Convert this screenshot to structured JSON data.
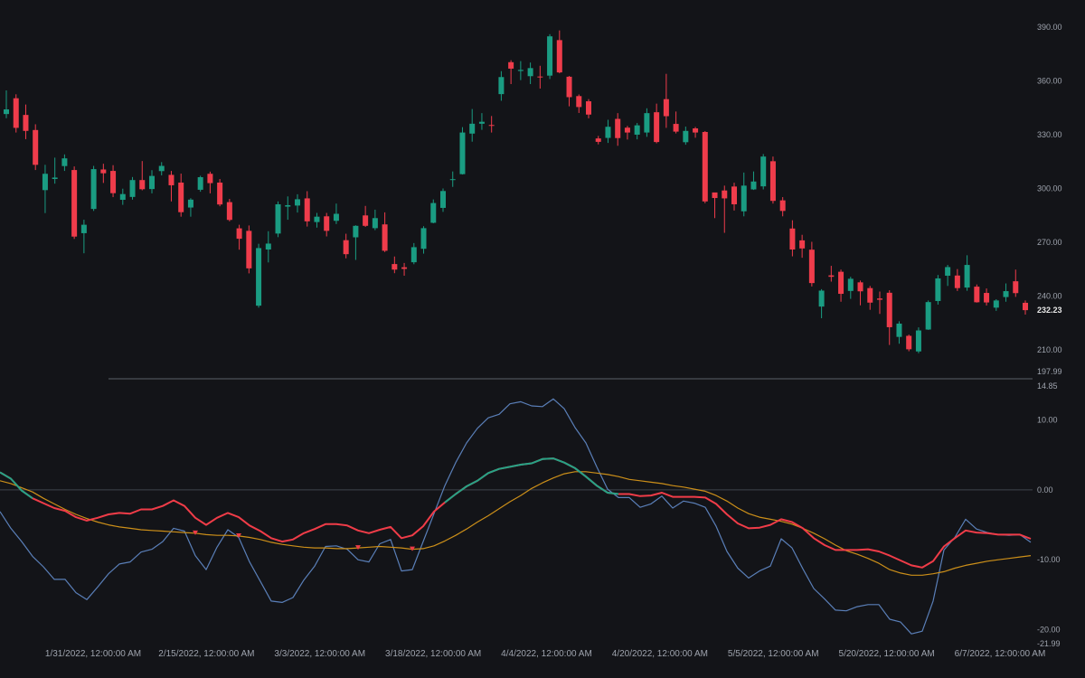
{
  "chart_data": [
    {
      "type": "candlestick",
      "ylim": [
        197.99,
        398
      ],
      "y_ticks": [
        "390.00",
        "360.00",
        "330.00",
        "300.00",
        "270.00",
        "240.00",
        "210.00"
      ],
      "y_min_label": "197.99",
      "last_price": "232.23",
      "last_price_value": 232.23,
      "up_color": "#1a9c82",
      "down_color": "#ef3c4b",
      "candles": [
        {
          "o": 341.5,
          "h": 354.7,
          "l": 339.2,
          "c": 344.1
        },
        {
          "o": 350.3,
          "h": 352.5,
          "l": 331.2,
          "c": 333.8
        },
        {
          "o": 341.0,
          "h": 346.8,
          "l": 327.5,
          "c": 332.1
        },
        {
          "o": 332.6,
          "h": 335.8,
          "l": 310.3,
          "c": 313.2
        },
        {
          "o": 299.1,
          "h": 313.2,
          "l": 286.3,
          "c": 308.2
        },
        {
          "o": 305.3,
          "h": 317.2,
          "l": 302.7,
          "c": 306.1
        },
        {
          "o": 312.5,
          "h": 319.0,
          "l": 309.8,
          "c": 316.8
        },
        {
          "o": 310.3,
          "h": 312.3,
          "l": 271.9,
          "c": 273.2
        },
        {
          "o": 275.1,
          "h": 282.6,
          "l": 263.9,
          "c": 279.8
        },
        {
          "o": 288.6,
          "h": 312.6,
          "l": 287.5,
          "c": 310.8
        },
        {
          "o": 310.6,
          "h": 313.8,
          "l": 303.1,
          "c": 308.5
        },
        {
          "o": 309.8,
          "h": 313.0,
          "l": 295.2,
          "c": 297.4
        },
        {
          "o": 293.7,
          "h": 299.9,
          "l": 290.9,
          "c": 296.9
        },
        {
          "o": 295.3,
          "h": 306.4,
          "l": 293.8,
          "c": 304.7
        },
        {
          "o": 304.7,
          "h": 315.3,
          "l": 299.0,
          "c": 299.6
        },
        {
          "o": 299.7,
          "h": 310.2,
          "l": 297.3,
          "c": 307.0
        },
        {
          "o": 309.7,
          "h": 314.7,
          "l": 307.3,
          "c": 312.6
        },
        {
          "o": 307.6,
          "h": 309.8,
          "l": 292.8,
          "c": 301.8
        },
        {
          "o": 303.3,
          "h": 308.3,
          "l": 284.3,
          "c": 286.8
        },
        {
          "o": 289.4,
          "h": 294.6,
          "l": 284.3,
          "c": 293.8
        },
        {
          "o": 299.3,
          "h": 307.1,
          "l": 298.2,
          "c": 306.3
        },
        {
          "o": 308.2,
          "h": 309.4,
          "l": 297.3,
          "c": 303.0
        },
        {
          "o": 303.3,
          "h": 305.3,
          "l": 290.1,
          "c": 291.1
        },
        {
          "o": 292.4,
          "h": 294.2,
          "l": 281.7,
          "c": 282.5
        },
        {
          "o": 277.8,
          "h": 279.8,
          "l": 265.9,
          "c": 272.0
        },
        {
          "o": 276.4,
          "h": 279.4,
          "l": 252.7,
          "c": 255.5
        },
        {
          "o": 234.7,
          "h": 269.2,
          "l": 233.6,
          "c": 266.8
        },
        {
          "o": 266.0,
          "h": 276.2,
          "l": 258.8,
          "c": 269.3
        },
        {
          "o": 274.9,
          "h": 292.8,
          "l": 272.9,
          "c": 291.2
        },
        {
          "o": 289.9,
          "h": 295.6,
          "l": 282.6,
          "c": 290.7
        },
        {
          "o": 290.5,
          "h": 296.8,
          "l": 286.6,
          "c": 294.0
        },
        {
          "o": 294.5,
          "h": 298.5,
          "l": 278.8,
          "c": 281.7
        },
        {
          "o": 281.3,
          "h": 286.4,
          "l": 278.2,
          "c": 284.3
        },
        {
          "o": 284.5,
          "h": 286.4,
          "l": 273.3,
          "c": 276.4
        },
        {
          "o": 282.0,
          "h": 291.6,
          "l": 280.2,
          "c": 285.9
        },
        {
          "o": 271.2,
          "h": 274.8,
          "l": 261.1,
          "c": 263.4
        },
        {
          "o": 272.8,
          "h": 279.5,
          "l": 260.2,
          "c": 279.2
        },
        {
          "o": 285.0,
          "h": 290.3,
          "l": 278.6,
          "c": 279.2
        },
        {
          "o": 277.9,
          "h": 288.2,
          "l": 276.8,
          "c": 283.5
        },
        {
          "o": 280.0,
          "h": 286.7,
          "l": 264.6,
          "c": 265.3
        },
        {
          "o": 257.9,
          "h": 262.1,
          "l": 252.8,
          "c": 254.8
        },
        {
          "o": 256.1,
          "h": 258.5,
          "l": 251.4,
          "c": 255.2
        },
        {
          "o": 258.9,
          "h": 269.6,
          "l": 257.8,
          "c": 267.3
        },
        {
          "o": 266.4,
          "h": 279.0,
          "l": 263.7,
          "c": 277.9
        },
        {
          "o": 280.9,
          "h": 293.9,
          "l": 280.6,
          "c": 291.9
        },
        {
          "o": 289.2,
          "h": 300.0,
          "l": 287.0,
          "c": 298.6
        },
        {
          "o": 305.1,
          "h": 309.5,
          "l": 300.9,
          "c": 305.2
        },
        {
          "o": 308.0,
          "h": 334.2,
          "l": 307.8,
          "c": 331.2
        },
        {
          "o": 330.6,
          "h": 344.3,
          "l": 326.1,
          "c": 336.1
        },
        {
          "o": 336.1,
          "h": 342.0,
          "l": 332.7,
          "c": 337.2
        },
        {
          "o": 335.4,
          "h": 340.4,
          "l": 331.2,
          "c": 335.0
        },
        {
          "o": 352.6,
          "h": 365.4,
          "l": 348.9,
          "c": 362.1
        },
        {
          "o": 370.4,
          "h": 371.5,
          "l": 358.2,
          "c": 366.8
        },
        {
          "o": 365.5,
          "h": 371.0,
          "l": 360.4,
          "c": 366.1
        },
        {
          "o": 362.6,
          "h": 370.2,
          "l": 358.2,
          "c": 367.1
        },
        {
          "o": 362.4,
          "h": 368.4,
          "l": 355.7,
          "c": 362.2
        },
        {
          "o": 362.9,
          "h": 386.0,
          "l": 361.0,
          "c": 384.8
        },
        {
          "o": 382.7,
          "h": 388.1,
          "l": 364.2,
          "c": 364.7
        },
        {
          "o": 362.3,
          "h": 362.7,
          "l": 345.8,
          "c": 350.9
        },
        {
          "o": 351.5,
          "h": 352.4,
          "l": 342.1,
          "c": 345.4
        },
        {
          "o": 348.6,
          "h": 349.8,
          "l": 339.1,
          "c": 341.2
        },
        {
          "o": 327.9,
          "h": 329.3,
          "l": 324.6,
          "c": 326.0
        },
        {
          "o": 328.2,
          "h": 338.3,
          "l": 325.4,
          "c": 334.4
        },
        {
          "o": 338.8,
          "h": 342.0,
          "l": 323.8,
          "c": 328.1
        },
        {
          "o": 333.9,
          "h": 334.9,
          "l": 327.3,
          "c": 331.2
        },
        {
          "o": 330.0,
          "h": 336.5,
          "l": 327.4,
          "c": 335.2
        },
        {
          "o": 331.2,
          "h": 344.7,
          "l": 328.8,
          "c": 342.0
        },
        {
          "o": 342.5,
          "h": 347.3,
          "l": 325.2,
          "c": 325.9
        },
        {
          "o": 349.8,
          "h": 363.9,
          "l": 333.8,
          "c": 340.3
        },
        {
          "o": 336.0,
          "h": 342.9,
          "l": 330.7,
          "c": 331.7
        },
        {
          "o": 325.8,
          "h": 334.5,
          "l": 324.4,
          "c": 332.1
        },
        {
          "o": 333.5,
          "h": 334.3,
          "l": 328.3,
          "c": 331.2
        },
        {
          "o": 331.5,
          "h": 332.0,
          "l": 291.8,
          "c": 292.8
        },
        {
          "o": 297.8,
          "h": 297.6,
          "l": 283.5,
          "c": 294.7
        },
        {
          "o": 298.9,
          "h": 301.6,
          "l": 275.3,
          "c": 294.5
        },
        {
          "o": 301.1,
          "h": 303.2,
          "l": 287.7,
          "c": 291.2
        },
        {
          "o": 287.3,
          "h": 308.9,
          "l": 284.5,
          "c": 301.6
        },
        {
          "o": 299.5,
          "h": 309.5,
          "l": 299.2,
          "c": 303.9
        },
        {
          "o": 301.2,
          "h": 319.2,
          "l": 299.5,
          "c": 317.8
        },
        {
          "o": 315.2,
          "h": 317.8,
          "l": 291.6,
          "c": 293.1
        },
        {
          "o": 293.4,
          "h": 295.2,
          "l": 284.5,
          "c": 287.5
        },
        {
          "o": 277.7,
          "h": 282.3,
          "l": 262.2,
          "c": 266.0
        },
        {
          "o": 271.1,
          "h": 274.2,
          "l": 261.4,
          "c": 266.6
        },
        {
          "o": 265.9,
          "h": 270.3,
          "l": 245.4,
          "c": 247.3
        },
        {
          "o": 234.2,
          "h": 243.9,
          "l": 227.7,
          "c": 243.1
        },
        {
          "o": 251.6,
          "h": 256.9,
          "l": 248.1,
          "c": 250.8
        },
        {
          "o": 253.6,
          "h": 254.8,
          "l": 236.9,
          "c": 241.3
        },
        {
          "o": 242.9,
          "h": 250.8,
          "l": 238.5,
          "c": 249.7
        },
        {
          "o": 247.7,
          "h": 248.7,
          "l": 234.9,
          "c": 242.7
        },
        {
          "o": 244.5,
          "h": 245.7,
          "l": 232.4,
          "c": 236.4
        },
        {
          "o": 238.7,
          "h": 242.6,
          "l": 230.1,
          "c": 238.0
        },
        {
          "o": 241.9,
          "h": 243.3,
          "l": 212.8,
          "c": 222.7
        },
        {
          "o": 217.3,
          "h": 226.0,
          "l": 213.5,
          "c": 224.7
        },
        {
          "o": 217.9,
          "h": 218.6,
          "l": 209.3,
          "c": 210.4
        },
        {
          "o": 209.2,
          "h": 222.6,
          "l": 208.2,
          "c": 220.9
        },
        {
          "o": 221.4,
          "h": 237.6,
          "l": 221.2,
          "c": 236.7
        },
        {
          "o": 237.3,
          "h": 251.8,
          "l": 235.3,
          "c": 249.9
        },
        {
          "o": 251.4,
          "h": 257.4,
          "l": 245.7,
          "c": 256.2
        },
        {
          "o": 251.5,
          "h": 255.1,
          "l": 242.9,
          "c": 244.5
        },
        {
          "o": 244.8,
          "h": 262.8,
          "l": 243.0,
          "c": 257.4
        },
        {
          "o": 245.3,
          "h": 246.5,
          "l": 236.4,
          "c": 236.6
        },
        {
          "o": 241.8,
          "h": 244.3,
          "l": 234.8,
          "c": 236.5
        },
        {
          "o": 233.6,
          "h": 238.3,
          "l": 231.8,
          "c": 237.6
        },
        {
          "o": 239.5,
          "h": 247.1,
          "l": 236.9,
          "c": 242.8
        },
        {
          "o": 248.3,
          "h": 254.8,
          "l": 239.6,
          "c": 241.7
        },
        {
          "o": 236.3,
          "h": 237.6,
          "l": 229.7,
          "c": 232.2
        }
      ]
    },
    {
      "type": "line",
      "ylim": [
        -21.99,
        14.85
      ],
      "y_ticks": [
        "10.00",
        "0.00",
        "-10.00",
        "-20.00"
      ],
      "y_top_label": "14.85",
      "y_bottom_label": "-21.99",
      "x_labels": [
        "1/31/2022, 12:00:00 AM",
        "2/15/2022, 12:00:00 AM",
        "3/3/2022, 12:00:00 AM",
        "3/18/2022, 12:00:00 AM",
        "4/4/2022, 12:00:00 AM",
        "4/20/2022, 12:00:00 AM",
        "5/5/2022, 12:00:00 AM",
        "5/20/2022, 12:00:00 AM",
        "6/7/2022, 12:00:00 AM"
      ],
      "series": [
        {
          "color": "#5a7fb8",
          "values": [
            -3.1,
            -5.5,
            -7.4,
            -9.5,
            -11.0,
            -12.8,
            -12.8,
            -14.7,
            -15.7,
            -13.9,
            -12.0,
            -10.6,
            -10.3,
            -8.9,
            -8.5,
            -7.4,
            -5.5,
            -5.9,
            -9.4,
            -11.4,
            -8.2,
            -5.7,
            -6.8,
            -10.3,
            -13.1,
            -15.9,
            -16.1,
            -15.4,
            -12.9,
            -10.9,
            -8.1,
            -8.0,
            -8.5,
            -10.0,
            -10.3,
            -7.7,
            -7.1,
            -11.6,
            -11.4,
            -7.4,
            -3.4,
            0.6,
            3.9,
            6.7,
            8.8,
            10.3,
            10.8,
            12.3,
            12.6,
            12.0,
            11.9,
            13.0,
            11.6,
            8.9,
            6.7,
            3.3,
            0.1,
            -1.1,
            -1.1,
            -2.5,
            -2.0,
            -0.9,
            -2.6,
            -1.6,
            -1.9,
            -2.5,
            -5.2,
            -8.8,
            -11.2,
            -12.6,
            -11.6,
            -10.9,
            -7.0,
            -8.3,
            -11.3,
            -14.1,
            -15.6,
            -17.2,
            -17.3,
            -16.7,
            -16.4,
            -16.4,
            -18.5,
            -18.9,
            -20.6,
            -20.2,
            -15.9,
            -8.6,
            -6.8,
            -4.2,
            -5.6,
            -6.1,
            -6.4,
            -6.5,
            -6.4,
            -7.5
          ]
        },
        {
          "color": "#f03c48",
          "values": [
            2.5,
            1.6,
            -0.1,
            -1.2,
            -1.9,
            -2.6,
            -3.0,
            -3.9,
            -4.4,
            -4.0,
            -3.5,
            -3.3,
            -3.4,
            -2.8,
            -2.8,
            -2.3,
            -1.5,
            -2.3,
            -4.0,
            -5.0,
            -4.0,
            -3.3,
            -3.9,
            -5.1,
            -5.9,
            -6.9,
            -7.4,
            -7.1,
            -6.2,
            -5.6,
            -4.9,
            -4.9,
            -5.1,
            -5.8,
            -6.2,
            -5.7,
            -5.3,
            -6.9,
            -6.5,
            -5.2,
            -3.1,
            -1.8,
            -0.6,
            0.5,
            1.3,
            2.4,
            3.0,
            3.3,
            3.6,
            3.8,
            4.4,
            4.5,
            3.9,
            3.1,
            1.9,
            0.6,
            -0.4,
            -0.6,
            -0.6,
            -0.9,
            -0.8,
            -0.4,
            -1.0,
            -1.0,
            -1.0,
            -1.1,
            -2.0,
            -3.5,
            -4.8,
            -5.5,
            -5.4,
            -5.0,
            -4.2,
            -4.6,
            -5.5,
            -6.9,
            -7.9,
            -8.6,
            -8.6,
            -8.6,
            -8.5,
            -8.8,
            -9.4,
            -10.1,
            -10.8,
            -11.1,
            -10.2,
            -8.1,
            -6.9,
            -5.8,
            -6.1,
            -6.2,
            -6.4,
            -6.4,
            -6.4,
            -7.0
          ]
        },
        {
          "color": "#cc8f19",
          "values": [
            1.3,
            0.9,
            0.3,
            -0.3,
            -1.2,
            -2.0,
            -2.8,
            -3.5,
            -4.1,
            -4.6,
            -5.0,
            -5.3,
            -5.5,
            -5.7,
            -5.8,
            -5.9,
            -6.0,
            -6.1,
            -6.2,
            -6.4,
            -6.5,
            -6.5,
            -6.6,
            -6.8,
            -7.1,
            -7.5,
            -7.8,
            -8.0,
            -8.2,
            -8.3,
            -8.3,
            -8.4,
            -8.4,
            -8.3,
            -8.2,
            -8.1,
            -8.2,
            -8.3,
            -8.5,
            -8.4,
            -8.0,
            -7.3,
            -6.5,
            -5.6,
            -4.6,
            -3.7,
            -2.7,
            -1.7,
            -0.8,
            0.2,
            1.0,
            1.7,
            2.3,
            2.6,
            2.6,
            2.4,
            2.2,
            1.9,
            1.5,
            1.3,
            1.1,
            0.9,
            0.6,
            0.4,
            0.1,
            -0.2,
            -0.8,
            -1.6,
            -2.6,
            -3.4,
            -3.9,
            -4.2,
            -4.5,
            -4.9,
            -5.5,
            -6.2,
            -7.0,
            -7.9,
            -8.7,
            -9.2,
            -9.8,
            -10.5,
            -11.4,
            -11.9,
            -12.2,
            -12.2,
            -12.0,
            -11.7,
            -11.2,
            -10.8,
            -10.5,
            -10.2,
            -10.0,
            -9.8,
            -9.6,
            -9.4
          ]
        }
      ],
      "highlight_color": "#26a386",
      "highlight_start": 0,
      "highlight_end": 3,
      "highlight2_start": 41,
      "highlight2_end": 57,
      "markers": [
        {
          "index": 18,
          "value": -6.2
        },
        {
          "index": 22,
          "value": -6.6
        },
        {
          "index": 33,
          "value": -8.3
        },
        {
          "index": 38,
          "value": -8.5
        }
      ],
      "marker_color": "#f03c48"
    }
  ]
}
